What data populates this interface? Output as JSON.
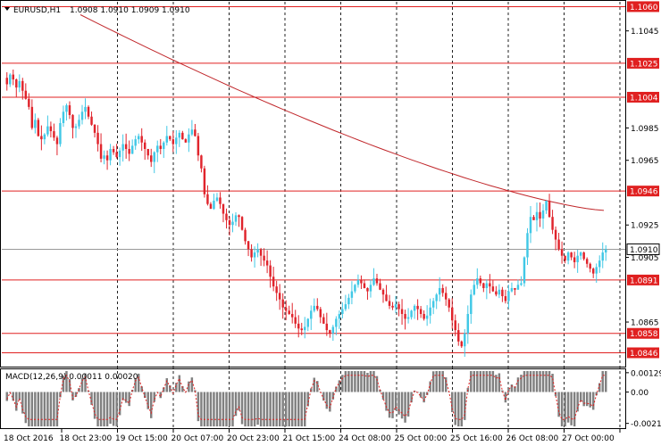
{
  "header": {
    "title": "EURUSD,H1",
    "ohlc": "1.0908 1.0910 1.0909 1.0910"
  },
  "colors": {
    "bull": "#41c8e6",
    "bear": "#e0242c",
    "level": "#e02020",
    "ma": "#c0262a",
    "grid": "#222222",
    "macd_bar": "#808080",
    "macd_signal": "#e02020",
    "current_tag": "#ffffff"
  },
  "price_axis": {
    "min": 1.0838,
    "max": 1.1063,
    "ticks": [
      "1.1045",
      "1.0985",
      "1.0965",
      "1.0925",
      "1.0905",
      "1.0865"
    ],
    "levels": [
      "1.1060",
      "1.1025",
      "1.1004",
      "1.0946",
      "1.0891",
      "1.0858",
      "1.0846"
    ],
    "current": "1.0910"
  },
  "time_axis": {
    "labels": [
      "18 Oct 2016",
      "18 Oct 23:00",
      "19 Oct 15:00",
      "20 Oct 07:00",
      "20 Oct 23:00",
      "21 Oct 15:00",
      "24 Oct 08:00",
      "25 Oct 00:00",
      "25 Oct 16:00",
      "26 Oct 08:00",
      "27 Oct 00:00"
    ]
  },
  "macd": {
    "label": "MACD(12,26,9) 0.00011 0.00020",
    "ticks": [
      "0.00129",
      "0.00",
      "-0.0021"
    ],
    "min": -0.0023,
    "max": 0.0014
  },
  "chart_data": {
    "type": "candlestick",
    "symbol": "EURUSD",
    "timeframe": "H1",
    "closes": [
      1.1012,
      1.1018,
      1.1015,
      1.101,
      1.1014,
      1.1008,
      1.1003,
      1.0998,
      1.0985,
      1.099,
      1.098,
      1.0978,
      1.0981,
      1.0986,
      1.0983,
      1.0979,
      1.0975,
      1.0988,
      1.0995,
      1.0999,
      1.0993,
      1.0985,
      1.0986,
      1.099,
      1.0995,
      1.0998,
      1.0992,
      1.0987,
      1.0982,
      1.0975,
      1.0966,
      1.0968,
      1.0965,
      1.0972,
      1.097,
      1.0967,
      1.0971,
      1.0975,
      1.0972,
      1.0969,
      1.0974,
      1.0978,
      1.098,
      1.0976,
      1.0972,
      1.0968,
      1.0964,
      1.097,
      1.0974,
      1.0972,
      1.0976,
      1.098,
      1.0978,
      1.0975,
      1.0979,
      1.0982,
      1.0978,
      1.0976,
      1.0981,
      1.0984,
      1.098,
      1.0968,
      1.096,
      1.0944,
      1.0938,
      1.0935,
      1.094,
      1.0942,
      1.0938,
      1.0932,
      1.0928,
      1.0925,
      1.0927,
      1.0931,
      1.093,
      1.0922,
      1.0915,
      1.091,
      1.0905,
      1.0908,
      1.091,
      1.0906,
      1.0903,
      1.09,
      1.0893,
      1.0887,
      1.0883,
      1.0879,
      1.0874,
      1.0872,
      1.087,
      1.0868,
      1.0864,
      1.0861,
      1.086,
      1.0862,
      1.0867,
      1.0872,
      1.0875,
      1.0873,
      1.0868,
      1.0864,
      1.086,
      1.0858,
      1.0862,
      1.0867,
      1.087,
      1.0873,
      1.0876,
      1.088,
      1.0884,
      1.0888,
      1.0891,
      1.0889,
      1.0886,
      1.0884,
      1.0888,
      1.0892,
      1.0889,
      1.0885,
      1.0882,
      1.0878,
      1.0875,
      1.0874,
      1.0876,
      1.0873,
      1.087,
      1.0867,
      1.0868,
      1.0872,
      1.0875,
      1.0873,
      1.087,
      1.0867,
      1.0869,
      1.0874,
      1.0878,
      1.0882,
      1.0886,
      1.0883,
      1.0879,
      1.0874,
      1.0866,
      1.086,
      1.0853,
      1.085,
      1.0858,
      1.087,
      1.0882,
      1.0888,
      1.0892,
      1.0889,
      1.0886,
      1.0889,
      1.0887,
      1.0884,
      1.0882,
      1.0885,
      1.0881,
      1.0878,
      1.0884,
      1.0886,
      1.0885,
      1.0888,
      1.0889,
      1.0905,
      1.092,
      1.093,
      1.0928,
      1.0933,
      1.0929,
      1.0934,
      1.094,
      1.093,
      1.0922,
      1.0916,
      1.091,
      1.0906,
      1.0903,
      1.0908,
      1.0905,
      1.0902,
      1.0906,
      1.0908,
      1.0904,
      1.0901,
      1.0898,
      1.0895,
      1.0899,
      1.0903,
      1.0908,
      1.091
    ],
    "ma_value_at_start": 1.1055,
    "ma_value_at_end": 1.0934
  }
}
